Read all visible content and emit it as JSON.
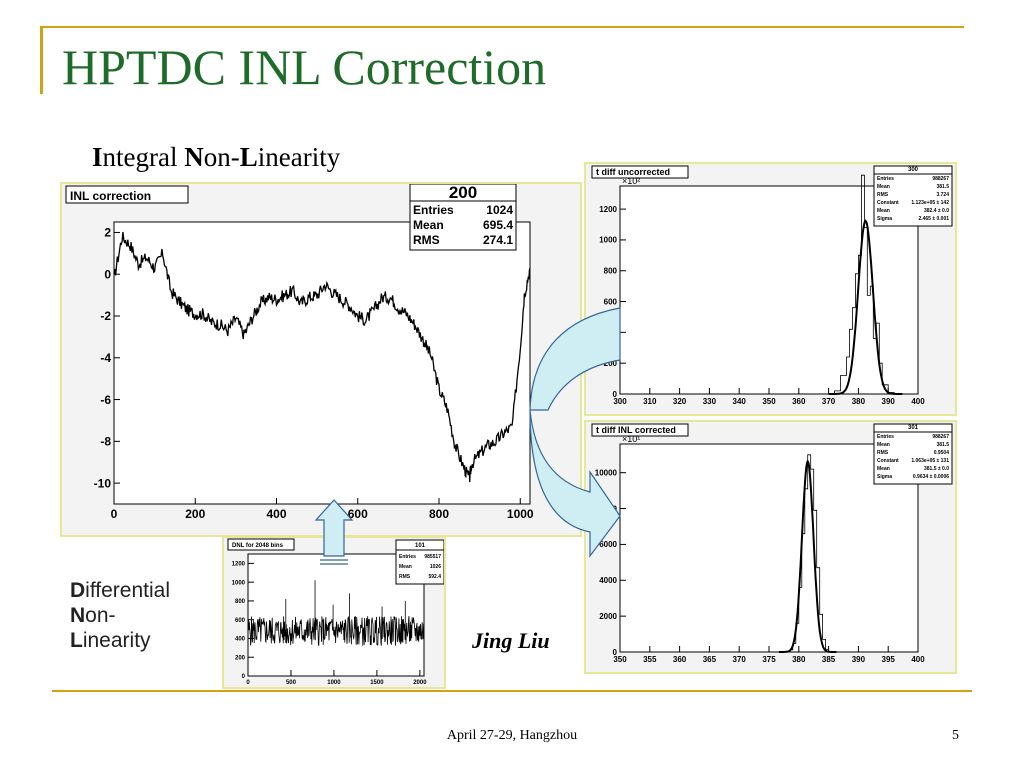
{
  "slide": {
    "title": "HPTDC INL Correction",
    "subtitle_parts": [
      "I",
      "ntegral ",
      "N",
      "on-",
      "L",
      "inearity"
    ],
    "dnl_label": [
      [
        "D",
        "ifferential"
      ],
      [
        "N",
        "on-"
      ],
      [
        "L",
        "inearity"
      ]
    ],
    "author": "Jing Liu",
    "footer_date": "April 27-29, Hangzhou",
    "page_number": "5",
    "colors": {
      "title": "#1f6b2a",
      "accent_rule": "#d4a017",
      "panel_border": "#e7e79a",
      "arrow_fill": "#cfeef4",
      "arrow_stroke": "#336699"
    }
  },
  "chart_data": [
    {
      "id": "inl",
      "type": "line",
      "title": "INL correction",
      "stats": {
        "name": "200",
        "rows": [
          [
            "Entries",
            "1024"
          ],
          [
            "Mean",
            "695.4"
          ],
          [
            "RMS",
            "274.1"
          ]
        ]
      },
      "xlim": [
        0,
        1024
      ],
      "ylim": [
        -11,
        2.5
      ],
      "xticks": [
        0,
        200,
        400,
        600,
        800,
        1000
      ],
      "yticks": [
        2,
        0,
        -2,
        -4,
        -6,
        -8,
        -10
      ],
      "x": [
        0,
        20,
        40,
        60,
        80,
        100,
        120,
        140,
        160,
        180,
        200,
        220,
        240,
        260,
        280,
        300,
        320,
        340,
        360,
        380,
        400,
        420,
        440,
        460,
        480,
        500,
        520,
        540,
        560,
        580,
        600,
        620,
        640,
        660,
        680,
        700,
        720,
        740,
        760,
        780,
        800,
        820,
        840,
        860,
        875,
        880,
        900,
        920,
        940,
        960,
        980,
        1000,
        1010,
        1024
      ],
      "y": [
        -0.2,
        1.8,
        1.4,
        0.5,
        0.8,
        0.3,
        1.0,
        -0.8,
        -1.3,
        -1.7,
        -1.9,
        -1.9,
        -2.3,
        -2.4,
        -2.7,
        -2.1,
        -2.9,
        -2.1,
        -1.4,
        -1.1,
        -1.2,
        -1.0,
        -0.8,
        -1.4,
        -1.1,
        -1.0,
        -0.5,
        -0.9,
        -1.2,
        -1.5,
        -2.0,
        -2.2,
        -1.7,
        -1.1,
        -1.1,
        -1.6,
        -1.9,
        -2.4,
        -3.1,
        -3.9,
        -5.5,
        -6.4,
        -8.2,
        -9.2,
        -9.8,
        -9.1,
        -8.6,
        -8.2,
        -8.0,
        -7.6,
        -7.3,
        -3.5,
        -1.0,
        0.3
      ]
    },
    {
      "id": "dnl",
      "type": "line",
      "title": "DNL for 2048 bins",
      "stats": {
        "name": "101",
        "rows": [
          [
            "Entries",
            "985517"
          ],
          [
            "Mean",
            "1026"
          ],
          [
            "RMS",
            "592.4"
          ]
        ]
      },
      "xlim": [
        0,
        2048
      ],
      "ylim": [
        0,
        1300
      ],
      "xticks": [
        0,
        500,
        1000,
        1500,
        2000
      ],
      "yticks": [
        0,
        200,
        400,
        600,
        800,
        1000,
        1200
      ],
      "mean_level": 480,
      "band": [
        320,
        640
      ],
      "spikes_x": [
        440,
        780,
        990,
        1180,
        1560,
        1830
      ],
      "spikes_y": [
        820,
        1020,
        760,
        880,
        740,
        800
      ]
    },
    {
      "id": "uncorrected",
      "type": "line",
      "title": "t diff uncorrected",
      "stats": {
        "name": "300",
        "rows": [
          [
            "Entries",
            "988267"
          ],
          [
            "Mean",
            "381.5"
          ],
          [
            "RMS",
            "3.724"
          ],
          [
            "Constant",
            "1.123e+05 ± 142"
          ],
          [
            "Mean",
            "382.4 ± 0.0"
          ],
          [
            "Sigma",
            "2.465 ± 0.001"
          ]
        ]
      },
      "y_multiplier": "×10²",
      "xlim": [
        300,
        400
      ],
      "ylim": [
        0,
        1350
      ],
      "xticks": [
        300,
        310,
        320,
        330,
        340,
        350,
        360,
        370,
        380,
        390,
        400
      ],
      "yticks": [
        0,
        200,
        400,
        600,
        800,
        1000,
        1200
      ],
      "fit": {
        "constant": 1123,
        "mean": 382.4,
        "sigma": 2.465
      },
      "histogram_x": [
        370,
        372,
        374,
        376,
        377,
        378,
        379,
        380,
        381,
        382,
        383,
        384,
        385,
        386,
        387,
        388,
        390,
        392
      ],
      "histogram_y": [
        0,
        20,
        120,
        240,
        420,
        560,
        780,
        900,
        1420,
        1080,
        640,
        700,
        360,
        460,
        200,
        60,
        10,
        0
      ]
    },
    {
      "id": "corrected",
      "type": "line",
      "title": "t diff INL corrected",
      "stats": {
        "name": "301",
        "rows": [
          [
            "Entries",
            "988267"
          ],
          [
            "Mean",
            "381.5"
          ],
          [
            "RMS",
            "0.9504"
          ],
          [
            "Constant",
            "1.063e+05 ± 131"
          ],
          [
            "Mean",
            "381.5 ± 0.0"
          ],
          [
            "Sigma",
            "0.9634 ± 0.0006"
          ]
        ]
      },
      "y_multiplier": "×10¹",
      "xlim": [
        350,
        400
      ],
      "ylim": [
        0,
        11600
      ],
      "xticks": [
        350,
        355,
        360,
        365,
        370,
        375,
        380,
        385,
        390,
        395,
        400
      ],
      "yticks": [
        0,
        2000,
        4000,
        6000,
        8000,
        10000
      ],
      "fit": {
        "constant": 10630,
        "mean": 381.5,
        "sigma": 0.9634
      },
      "histogram_x": [
        378,
        378.5,
        379,
        379.5,
        380,
        380.5,
        381,
        381.5,
        382,
        382.5,
        383,
        383.5,
        384,
        384.5,
        385
      ],
      "histogram_y": [
        0,
        120,
        480,
        1600,
        3600,
        6600,
        9100,
        11000,
        10200,
        7900,
        4700,
        2100,
        700,
        150,
        0
      ]
    }
  ]
}
